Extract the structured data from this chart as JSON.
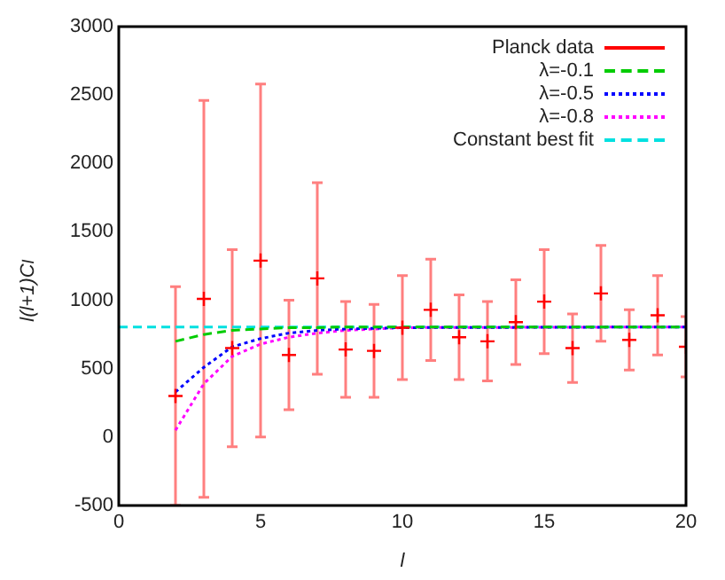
{
  "chart_data": {
    "type": "scatter",
    "xlabel": "l",
    "ylabel": "l(l+1)C$_{l}$",
    "xlim": [
      0,
      20
    ],
    "xticks": [
      0,
      5,
      10,
      15,
      20
    ],
    "ylim": [
      -500,
      3000
    ],
    "yticks": [
      -500,
      0,
      500,
      1000,
      1500,
      2000,
      2500,
      3000
    ],
    "legend": "top right",
    "series": [
      {
        "name": "Planck data",
        "marker": "cross",
        "color": "#ff0000",
        "x": [
          2,
          3,
          4,
          5,
          6,
          7,
          8,
          9,
          10,
          11,
          12,
          13,
          14,
          15,
          16,
          17,
          18,
          19,
          20
        ],
        "values": [
          300,
          1010,
          650,
          1290,
          600,
          1160,
          640,
          630,
          800,
          930,
          730,
          700,
          840,
          990,
          650,
          1050,
          710,
          890,
          660
        ],
        "errors": [
          800,
          1450,
          720,
          1290,
          400,
          700,
          350,
          340,
          380,
          370,
          310,
          290,
          310,
          380,
          250,
          350,
          220,
          290,
          220
        ]
      },
      {
        "name": "λ=-0.1",
        "type": "line",
        "color": "#00cc00",
        "line_style": "dashed",
        "x": [
          2,
          3,
          4,
          5,
          6,
          7,
          8,
          10,
          20
        ],
        "values": [
          700,
          750,
          780,
          790,
          800,
          800,
          805,
          805,
          805
        ]
      },
      {
        "name": "λ=-0.5",
        "type": "line",
        "color": "#0000ff",
        "line_style": "dotted",
        "x": [
          2,
          3,
          4,
          5,
          6,
          7,
          8,
          10,
          20
        ],
        "values": [
          330,
          510,
          660,
          720,
          760,
          780,
          790,
          800,
          805
        ]
      },
      {
        "name": "λ=-0.8",
        "type": "line",
        "color": "#ff00ff",
        "line_style": "dotted",
        "x": [
          2,
          3,
          4,
          5,
          6,
          7,
          8,
          9,
          10,
          20
        ],
        "values": [
          50,
          390,
          590,
          680,
          730,
          760,
          780,
          790,
          800,
          805
        ]
      },
      {
        "name": "Constant best fit",
        "type": "line",
        "color": "#00e0e0",
        "line_style": "dashed",
        "x": [
          0,
          20
        ],
        "values": [
          805,
          805
        ]
      }
    ]
  }
}
